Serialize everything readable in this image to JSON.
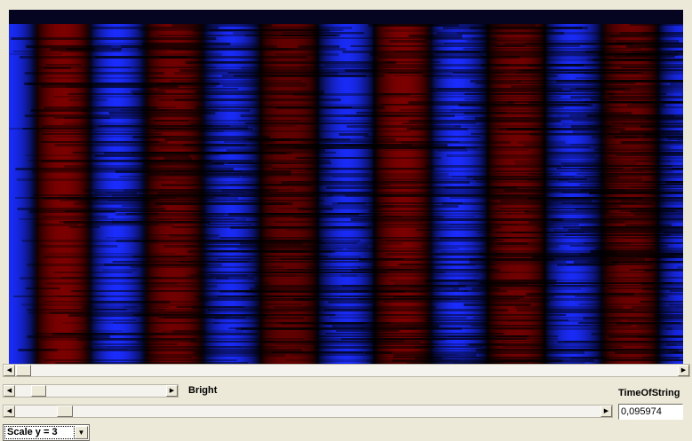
{
  "spectrogram": {
    "colors": {
      "negative": "#8a0000",
      "positive": "#1a2cff",
      "zero": "#000000",
      "top_band": "#050522"
    }
  },
  "bright": {
    "label": "Bright",
    "value": 0.15
  },
  "time_of_string": {
    "label": "TimeOfString",
    "value": "0,095974",
    "slider_value": 0.09
  },
  "main_scroll": {
    "value": 0.0
  },
  "scale": {
    "selected": "Scale y = 3"
  },
  "icons": {
    "left": "◀",
    "right": "▶",
    "down": "▼"
  }
}
